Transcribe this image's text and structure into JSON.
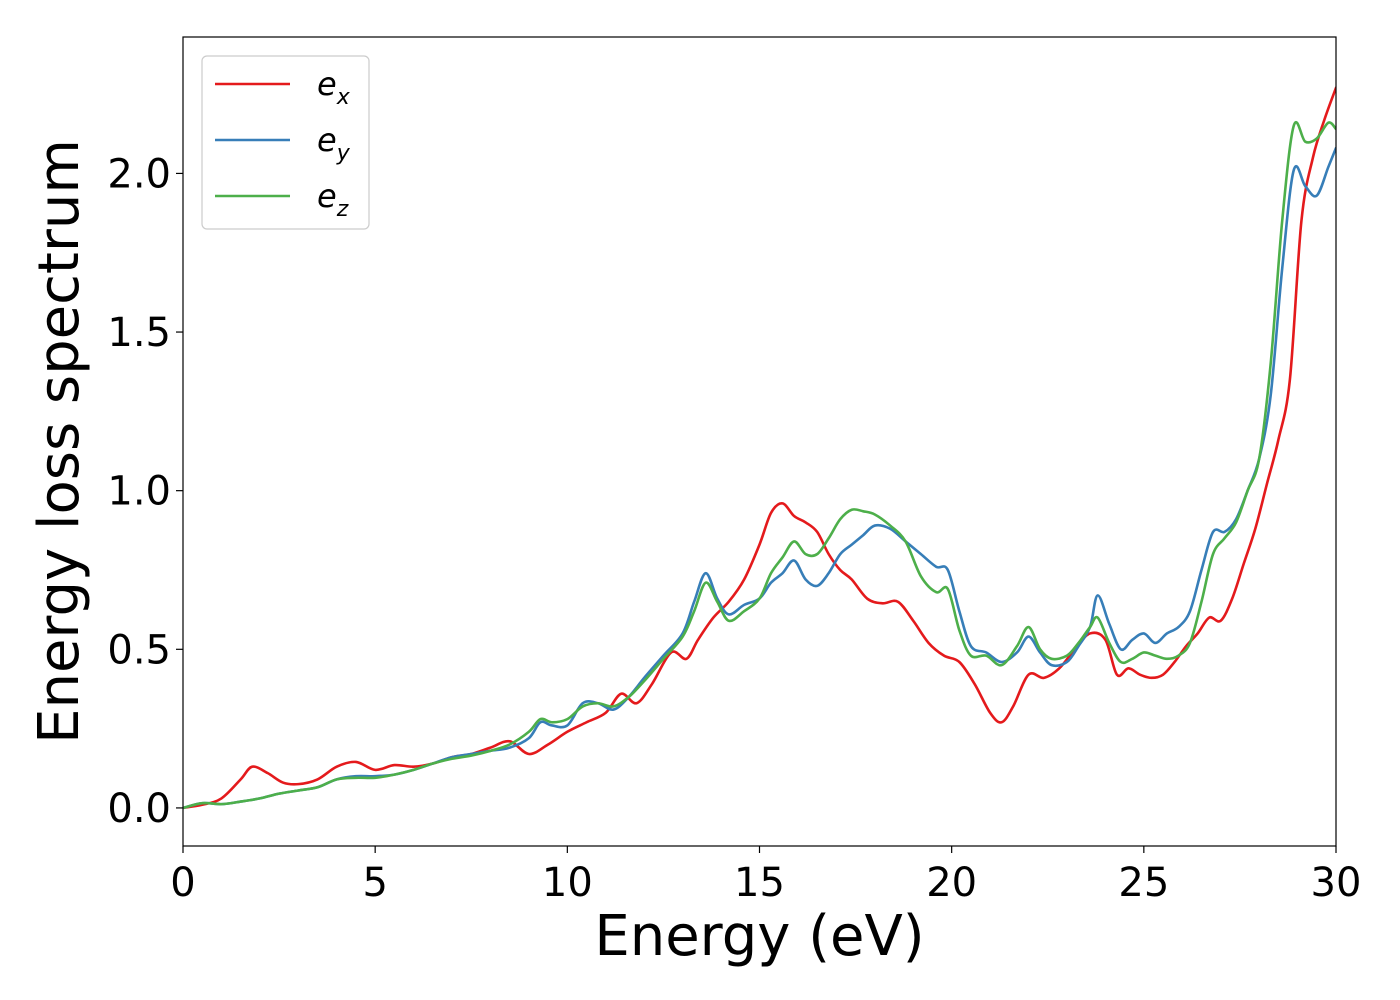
{
  "chart_data": {
    "type": "line",
    "title": "",
    "xlabel": "Energy (eV)",
    "ylabel": "Energy loss spectrum",
    "xlim": [
      0,
      30
    ],
    "ylim": [
      -0.12,
      2.43
    ],
    "xticks": [
      0,
      5,
      10,
      15,
      20,
      25,
      30
    ],
    "xtick_labels": [
      "0",
      "5",
      "10",
      "15",
      "20",
      "25",
      "30"
    ],
    "yticks": [
      0.0,
      0.5,
      1.0,
      1.5,
      2.0
    ],
    "ytick_labels": [
      "0.0",
      "0.5",
      "1.0",
      "1.5",
      "2.0"
    ],
    "grid": false,
    "legend_position": "top-left",
    "series": [
      {
        "name": "e_x",
        "legend_base": "e",
        "legend_sub": "x",
        "color": "#e41a1c",
        "x": [
          0,
          0.5,
          1.0,
          1.5,
          1.8,
          2.2,
          2.6,
          3.0,
          3.5,
          4.0,
          4.5,
          5.0,
          5.5,
          6.0,
          6.5,
          7.0,
          7.5,
          8.0,
          8.5,
          9.0,
          9.5,
          10.0,
          10.5,
          11.0,
          11.4,
          11.8,
          12.2,
          12.7,
          13.1,
          13.4,
          13.8,
          14.2,
          14.6,
          15.0,
          15.3,
          15.6,
          15.9,
          16.2,
          16.5,
          16.8,
          17.1,
          17.4,
          17.8,
          18.2,
          18.6,
          19.0,
          19.4,
          19.8,
          20.2,
          20.6,
          21.0,
          21.3,
          21.6,
          22.0,
          22.4,
          22.8,
          23.2,
          23.6,
          24.0,
          24.3,
          24.6,
          24.9,
          25.2,
          25.5,
          25.8,
          26.1,
          26.4,
          26.7,
          27.0,
          27.3,
          27.6,
          27.9,
          28.2,
          28.5,
          28.8,
          29.1,
          29.4,
          29.7,
          30.0
        ],
        "y": [
          0.0,
          0.01,
          0.03,
          0.09,
          0.13,
          0.11,
          0.08,
          0.075,
          0.09,
          0.13,
          0.145,
          0.12,
          0.135,
          0.13,
          0.14,
          0.16,
          0.17,
          0.19,
          0.21,
          0.17,
          0.2,
          0.24,
          0.27,
          0.3,
          0.36,
          0.33,
          0.39,
          0.49,
          0.47,
          0.53,
          0.6,
          0.65,
          0.72,
          0.83,
          0.93,
          0.96,
          0.92,
          0.9,
          0.87,
          0.8,
          0.75,
          0.72,
          0.66,
          0.645,
          0.65,
          0.59,
          0.52,
          0.48,
          0.46,
          0.39,
          0.3,
          0.27,
          0.32,
          0.42,
          0.41,
          0.44,
          0.5,
          0.55,
          0.53,
          0.42,
          0.44,
          0.42,
          0.41,
          0.42,
          0.46,
          0.51,
          0.55,
          0.6,
          0.59,
          0.66,
          0.77,
          0.88,
          1.02,
          1.16,
          1.35,
          1.85,
          2.05,
          2.17,
          2.27
        ]
      },
      {
        "name": "e_y",
        "legend_base": "e",
        "legend_sub": "y",
        "color": "#377eb8",
        "x": [
          0,
          0.5,
          1.0,
          1.5,
          2.0,
          2.5,
          3.0,
          3.5,
          4.0,
          4.5,
          5.0,
          5.5,
          6.0,
          6.5,
          7.0,
          7.5,
          8.0,
          8.5,
          9.0,
          9.3,
          9.6,
          10.0,
          10.4,
          10.8,
          11.2,
          11.6,
          12.0,
          12.5,
          13.0,
          13.3,
          13.6,
          13.9,
          14.2,
          14.6,
          15.0,
          15.3,
          15.6,
          15.9,
          16.2,
          16.5,
          16.8,
          17.1,
          17.4,
          17.7,
          18.0,
          18.4,
          18.8,
          19.2,
          19.6,
          19.9,
          20.2,
          20.5,
          20.9,
          21.3,
          21.7,
          22.0,
          22.3,
          22.6,
          23.0,
          23.3,
          23.6,
          23.8,
          24.1,
          24.4,
          24.7,
          25.0,
          25.3,
          25.6,
          25.9,
          26.2,
          26.5,
          26.8,
          27.1,
          27.4,
          27.7,
          28.0,
          28.3,
          28.6,
          28.9,
          29.2,
          29.5,
          29.8,
          30.0
        ],
        "y": [
          0.0,
          0.015,
          0.012,
          0.02,
          0.03,
          0.045,
          0.055,
          0.065,
          0.09,
          0.1,
          0.1,
          0.105,
          0.12,
          0.14,
          0.16,
          0.17,
          0.18,
          0.19,
          0.22,
          0.27,
          0.26,
          0.26,
          0.33,
          0.33,
          0.31,
          0.35,
          0.41,
          0.48,
          0.55,
          0.65,
          0.74,
          0.66,
          0.61,
          0.64,
          0.66,
          0.71,
          0.74,
          0.78,
          0.72,
          0.7,
          0.74,
          0.8,
          0.83,
          0.86,
          0.89,
          0.88,
          0.84,
          0.8,
          0.76,
          0.75,
          0.62,
          0.51,
          0.49,
          0.46,
          0.49,
          0.54,
          0.49,
          0.45,
          0.46,
          0.51,
          0.57,
          0.67,
          0.58,
          0.5,
          0.53,
          0.55,
          0.52,
          0.55,
          0.57,
          0.62,
          0.75,
          0.87,
          0.87,
          0.91,
          1.0,
          1.1,
          1.3,
          1.7,
          2.01,
          1.96,
          1.93,
          2.02,
          2.08
        ]
      },
      {
        "name": "e_z",
        "legend_base": "e",
        "legend_sub": "z",
        "color": "#4daf4a",
        "x": [
          0,
          0.5,
          1.0,
          1.5,
          2.0,
          2.5,
          3.0,
          3.5,
          4.0,
          4.5,
          5.0,
          5.5,
          6.0,
          6.5,
          7.0,
          7.5,
          8.0,
          8.5,
          9.0,
          9.3,
          9.6,
          10.0,
          10.4,
          10.8,
          11.2,
          11.6,
          12.0,
          12.5,
          13.0,
          13.3,
          13.6,
          13.9,
          14.2,
          14.6,
          15.0,
          15.3,
          15.6,
          15.9,
          16.2,
          16.5,
          16.8,
          17.1,
          17.4,
          17.7,
          18.0,
          18.4,
          18.8,
          19.2,
          19.6,
          19.9,
          20.2,
          20.5,
          20.9,
          21.3,
          21.7,
          22.0,
          22.3,
          22.6,
          23.0,
          23.3,
          23.6,
          23.8,
          24.1,
          24.4,
          24.7,
          25.0,
          25.3,
          25.6,
          25.9,
          26.2,
          26.5,
          26.8,
          27.1,
          27.4,
          27.7,
          28.0,
          28.3,
          28.6,
          28.9,
          29.2,
          29.5,
          29.8,
          30.0
        ],
        "y": [
          0.0,
          0.015,
          0.012,
          0.02,
          0.03,
          0.045,
          0.055,
          0.065,
          0.09,
          0.095,
          0.095,
          0.105,
          0.12,
          0.14,
          0.155,
          0.165,
          0.18,
          0.2,
          0.24,
          0.28,
          0.27,
          0.28,
          0.32,
          0.33,
          0.32,
          0.35,
          0.4,
          0.47,
          0.54,
          0.62,
          0.71,
          0.65,
          0.59,
          0.62,
          0.66,
          0.74,
          0.79,
          0.84,
          0.8,
          0.8,
          0.85,
          0.91,
          0.94,
          0.935,
          0.925,
          0.89,
          0.84,
          0.73,
          0.68,
          0.69,
          0.56,
          0.48,
          0.48,
          0.45,
          0.51,
          0.57,
          0.5,
          0.47,
          0.48,
          0.52,
          0.57,
          0.6,
          0.52,
          0.46,
          0.47,
          0.49,
          0.48,
          0.47,
          0.48,
          0.52,
          0.65,
          0.8,
          0.85,
          0.9,
          1.0,
          1.1,
          1.4,
          1.85,
          2.15,
          2.1,
          2.11,
          2.16,
          2.14
        ]
      }
    ]
  }
}
